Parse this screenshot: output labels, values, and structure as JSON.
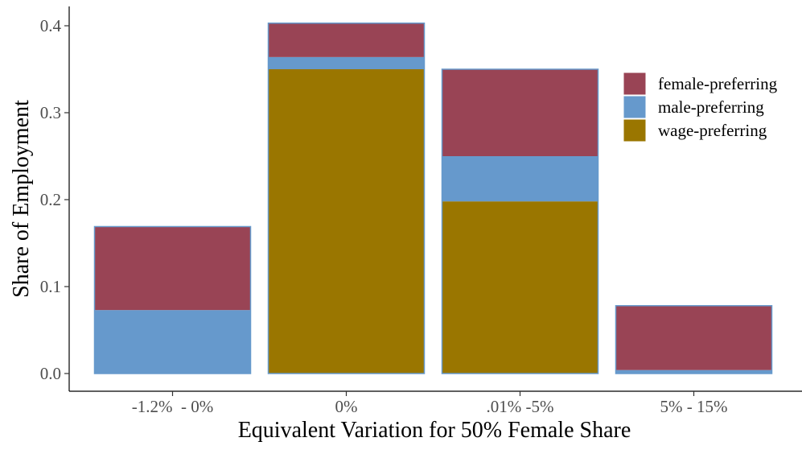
{
  "chart_data": {
    "type": "bar",
    "stacked": true,
    "title": "",
    "xlabel": "Equivalent Variation for 50% Female Share",
    "ylabel": "Share of Employment",
    "categories": [
      "-1.2%  - 0%",
      "0%",
      ".01% -5%",
      "5% - 15%"
    ],
    "ylim": [
      0,
      0.42
    ],
    "yticks": [
      "0.0",
      "0.1",
      "0.2",
      "0.3",
      "0.4"
    ],
    "ytick_values": [
      0,
      0.1,
      0.2,
      0.3,
      0.4
    ],
    "grid": false,
    "legend_position": "right",
    "series": [
      {
        "name": "wage-preferring",
        "color": "#9a7600",
        "values": [
          0,
          0.35,
          0.198,
          0
        ]
      },
      {
        "name": "male-preferring",
        "color": "#6699cc",
        "values": [
          0.073,
          0.014,
          0.052,
          0.004
        ]
      },
      {
        "name": "female-preferring",
        "color": "#994455",
        "values": [
          0.096,
          0.039,
          0.1,
          0.074
        ]
      }
    ],
    "legend_order": [
      "female-preferring",
      "male-preferring",
      "wage-preferring"
    ],
    "bar_outline_color": "#6699cc"
  }
}
